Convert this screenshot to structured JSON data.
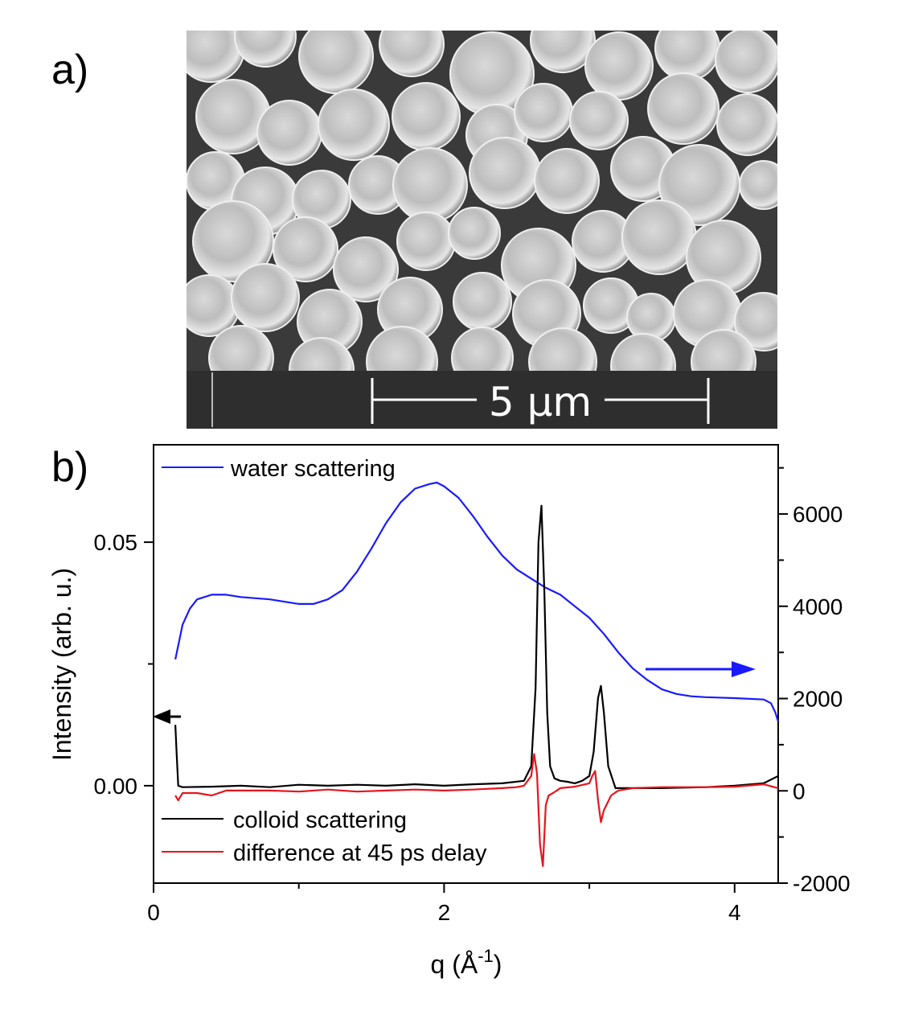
{
  "panel_a": {
    "label": "a)",
    "micrograph": {
      "description_icon": "sem-micrograph-spheres",
      "scale_bar_text": "5 μm"
    }
  },
  "panel_b": {
    "label": "b)"
  },
  "colors": {
    "water": "#1a1aff",
    "colloid": "#000000",
    "difference": "#e8141c",
    "sem_bg": "#2e2e2e",
    "sem_particle": "#bdbdbd"
  },
  "chart_data": {
    "type": "line",
    "xlabel": "q (Å-1)",
    "xlabel_main": "q (Å",
    "xlabel_sup": "-1",
    "xlabel_end": ")",
    "ylabel": "Intensity (arb. u.)",
    "xlim": [
      0,
      4.3
    ],
    "ylim_left": [
      -0.02,
      0.07
    ],
    "ylim_right": [
      -2000,
      7500
    ],
    "x_ticks": [
      0,
      2,
      4
    ],
    "x_tick_labels": [
      "0",
      "2",
      "4"
    ],
    "y_left_ticks": [
      0.0,
      0.05
    ],
    "y_left_tick_labels": [
      "0.00",
      "0.05"
    ],
    "y_right_ticks": [
      -2000,
      0,
      2000,
      4000,
      6000
    ],
    "y_right_tick_labels": [
      "-2000",
      "0",
      "2000",
      "4000",
      "6000"
    ],
    "legend": {
      "top": [
        "water scattering"
      ],
      "bottom": [
        "colloid scattering",
        "difference at 45 ps delay"
      ]
    },
    "series": [
      {
        "name": "water scattering",
        "axis": "right",
        "x": [
          0.15,
          0.17,
          0.2,
          0.25,
          0.3,
          0.4,
          0.5,
          0.6,
          0.8,
          1.0,
          1.1,
          1.2,
          1.3,
          1.4,
          1.5,
          1.6,
          1.7,
          1.8,
          1.9,
          1.95,
          2.0,
          2.1,
          2.2,
          2.3,
          2.4,
          2.5,
          2.6,
          2.65,
          2.7,
          2.8,
          2.9,
          3.0,
          3.1,
          3.2,
          3.3,
          3.4,
          3.5,
          3.6,
          3.7,
          3.8,
          4.0,
          4.2,
          4.25,
          4.28,
          4.3
        ],
        "y": [
          2850,
          3150,
          3600,
          3950,
          4150,
          4250,
          4250,
          4200,
          4150,
          4050,
          4050,
          4150,
          4350,
          4750,
          5250,
          5800,
          6250,
          6550,
          6650,
          6680,
          6600,
          6350,
          5950,
          5500,
          5100,
          4800,
          4600,
          4500,
          4400,
          4250,
          4000,
          3750,
          3400,
          3000,
          2650,
          2400,
          2200,
          2100,
          2050,
          2030,
          2010,
          1980,
          1900,
          1700,
          1500
        ]
      },
      {
        "name": "colloid scattering",
        "axis": "left",
        "x": [
          0.15,
          0.16,
          0.17,
          0.2,
          0.4,
          0.6,
          0.8,
          1.0,
          1.2,
          1.4,
          1.6,
          1.8,
          2.0,
          2.2,
          2.4,
          2.55,
          2.6,
          2.63,
          2.65,
          2.67,
          2.69,
          2.71,
          2.73,
          2.76,
          2.8,
          2.85,
          2.9,
          2.95,
          3.0,
          3.03,
          3.06,
          3.08,
          3.1,
          3.13,
          3.18,
          3.3,
          3.5,
          3.8,
          4.0,
          4.2,
          4.3
        ],
        "y": [
          0.0125,
          0.006,
          0.0,
          -0.0003,
          -0.0002,
          0.0,
          -0.0003,
          0.0002,
          0.0,
          0.0002,
          0.0,
          0.0003,
          0.0,
          0.0003,
          0.0005,
          0.001,
          0.004,
          0.02,
          0.05,
          0.0575,
          0.04,
          0.015,
          0.004,
          0.0015,
          0.001,
          0.0008,
          0.0005,
          0.001,
          0.002,
          0.007,
          0.018,
          0.0205,
          0.015,
          0.004,
          -0.0005,
          -0.0005,
          -0.0005,
          -0.0003,
          0.0,
          0.0005,
          0.002
        ]
      },
      {
        "name": "difference at 45 ps delay",
        "axis": "left",
        "x": [
          0.15,
          0.17,
          0.2,
          0.3,
          0.4,
          0.5,
          0.6,
          0.8,
          1.0,
          1.2,
          1.4,
          1.6,
          1.8,
          2.0,
          2.2,
          2.4,
          2.5,
          2.55,
          2.6,
          2.62,
          2.64,
          2.66,
          2.68,
          2.7,
          2.72,
          2.75,
          2.8,
          2.9,
          3.0,
          3.02,
          3.04,
          3.06,
          3.08,
          3.1,
          3.15,
          3.2,
          3.3,
          3.5,
          3.8,
          4.0,
          4.2,
          4.3
        ],
        "y": [
          -0.002,
          -0.003,
          -0.0015,
          -0.0015,
          -0.002,
          -0.001,
          -0.001,
          -0.001,
          -0.0012,
          -0.0008,
          -0.0012,
          -0.001,
          -0.0008,
          -0.001,
          -0.0008,
          -0.0005,
          -0.0003,
          0.0,
          0.002,
          0.0065,
          0.0025,
          -0.012,
          -0.0165,
          -0.004,
          -0.002,
          -0.0015,
          -0.0005,
          -0.0002,
          0.0005,
          0.002,
          0.003,
          -0.003,
          -0.0075,
          -0.005,
          -0.002,
          -0.001,
          -0.0005,
          -0.0003,
          -0.0003,
          -0.0002,
          0.0003,
          -0.0005
        ]
      }
    ],
    "annotations": [
      {
        "type": "arrow",
        "direction": "left",
        "color": "black",
        "meaning": "colloid uses left axis"
      },
      {
        "type": "arrow",
        "direction": "right",
        "color": "blue",
        "meaning": "water uses right axis"
      }
    ],
    "grid": false
  }
}
